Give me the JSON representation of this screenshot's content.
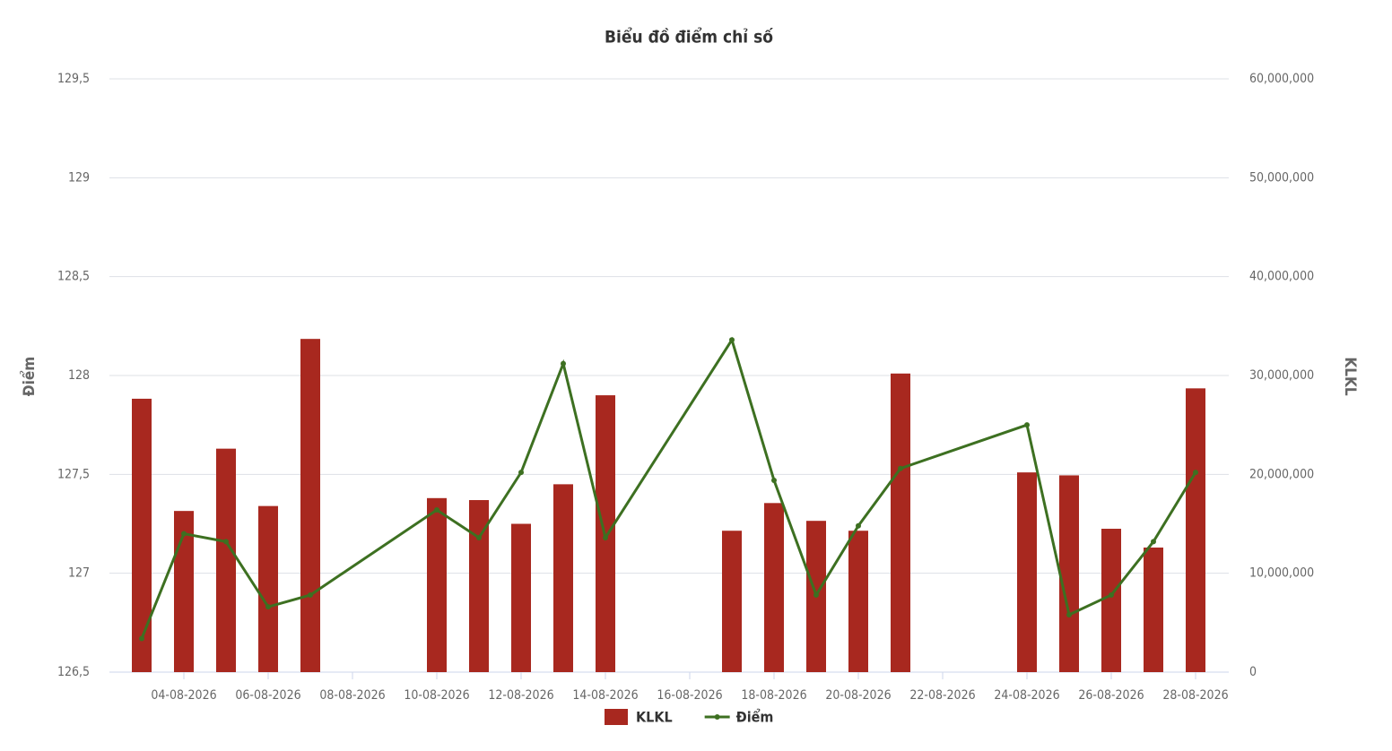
{
  "chart_data": {
    "type": "combo",
    "title": "Biểu đồ điểm chỉ số",
    "y_label": "Điểm",
    "y2_label": "KLKL",
    "x": [
      "03-08-2026",
      "04-08-2026",
      "05-08-2026",
      "06-08-2026",
      "07-08-2026",
      "10-08-2026",
      "11-08-2026",
      "12-08-2026",
      "13-08-2026",
      "14-08-2026",
      "17-08-2026",
      "18-08-2026",
      "19-08-2026",
      "20-08-2026",
      "21-08-2026",
      "24-08-2026",
      "25-08-2026",
      "26-08-2026",
      "27-08-2026",
      "28-08-2026"
    ],
    "xticks": [
      "04-08-2026",
      "06-08-2026",
      "08-08-2026",
      "10-08-2026",
      "12-08-2026",
      "14-08-2026",
      "16-08-2026",
      "18-08-2026",
      "20-08-2026",
      "22-08-2026",
      "24-08-2026",
      "26-08-2026",
      "28-08-2026"
    ],
    "series": [
      {
        "name": "KLKL",
        "type": "bar",
        "axis": "y2",
        "color": "#a8281f",
        "values": [
          27650000,
          16300000,
          22600000,
          16800000,
          33700000,
          17600000,
          17400000,
          15000000,
          19000000,
          28000000,
          14300000,
          17100000,
          15300000,
          14300000,
          30200000,
          20200000,
          19900000,
          14500000,
          12600000,
          28700000
        ]
      },
      {
        "name": "Điểm",
        "type": "line",
        "color": "#3d7021",
        "values": [
          126.67,
          127.2,
          127.16,
          126.83,
          126.89,
          127.32,
          127.18,
          127.51,
          128.06,
          127.18,
          128.18,
          127.47,
          126.89,
          127.24,
          127.53,
          127.75,
          126.79,
          126.89,
          127.16,
          127.51
        ]
      }
    ],
    "ylim": [
      126.5,
      129.5
    ],
    "yticks": [
      {
        "value": 126.5,
        "label": "126,5"
      },
      127,
      {
        "value": 127.5,
        "label": "127,5"
      },
      128,
      {
        "value": 128.5,
        "label": "128,5"
      },
      129,
      {
        "value": 129.5,
        "label": "129,5"
      }
    ],
    "y2lim": [
      0,
      60000000
    ],
    "y2ticks": [
      0,
      {
        "value": 10000000,
        "label": "10,000,000"
      },
      {
        "value": 20000000,
        "label": "20,000,000"
      },
      {
        "value": 30000000,
        "label": "30,000,000"
      },
      {
        "value": 40000000,
        "label": "40,000,000"
      },
      {
        "value": 50000000,
        "label": "50,000,000"
      },
      {
        "value": 60000000,
        "label": "60,000,000"
      }
    ],
    "grid": true,
    "legend": "bottom"
  }
}
